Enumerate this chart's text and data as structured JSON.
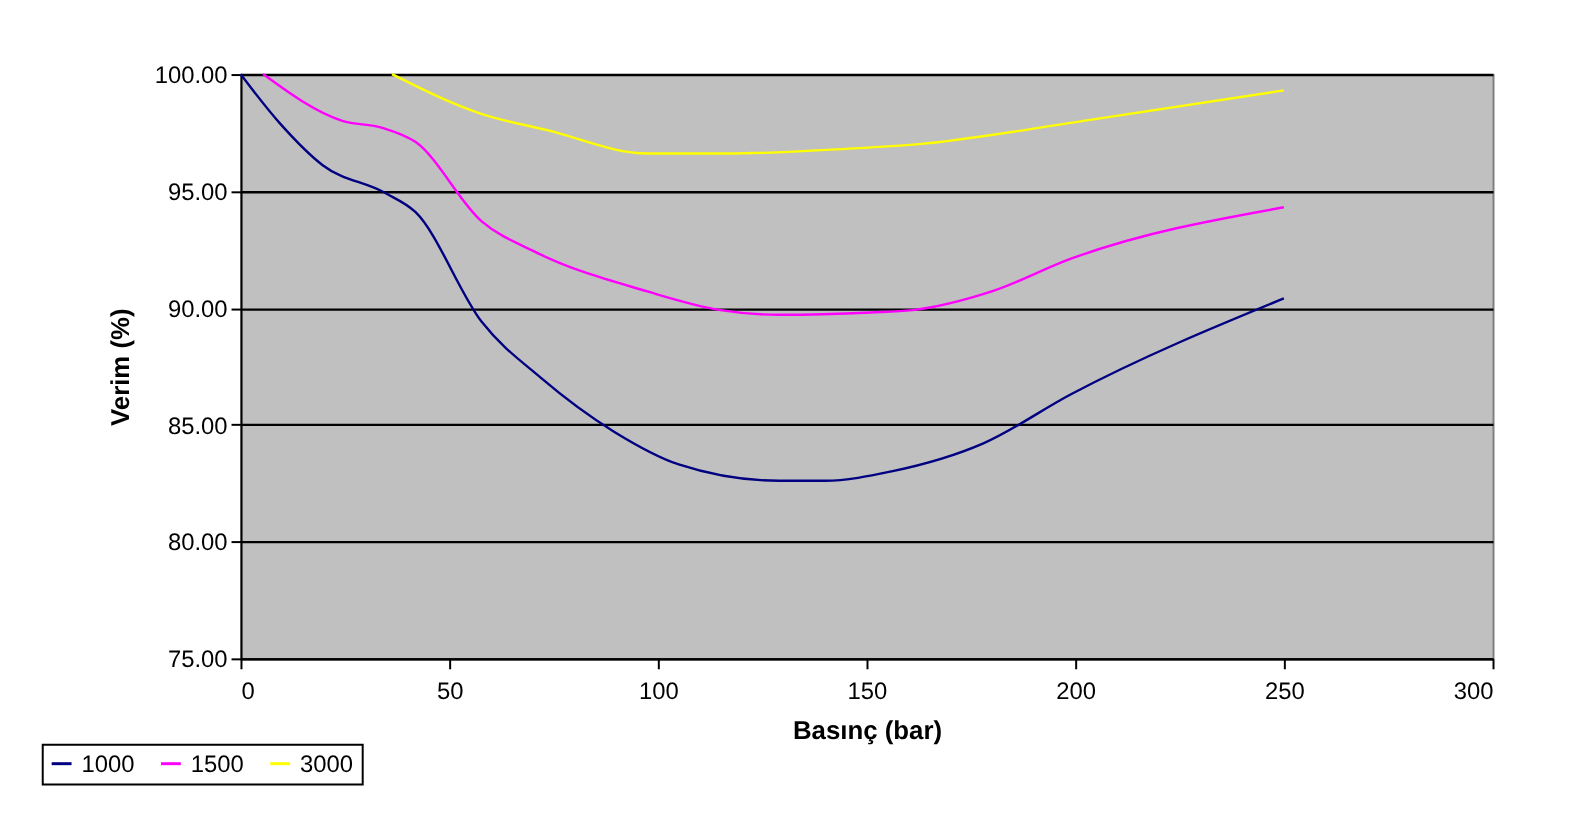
{
  "chart_data": {
    "type": "line",
    "xlabel": "Basınç (bar)",
    "ylabel": "Verim (%)",
    "xlim": [
      0,
      300
    ],
    "xticks": [
      0,
      50,
      100,
      150,
      200,
      250,
      300
    ],
    "ylim": [
      75,
      100
    ],
    "yticks": [
      {
        "value": 75,
        "label": "75.00"
      },
      {
        "value": 80,
        "label": "80.00"
      },
      {
        "value": 85,
        "label": "85.00"
      },
      {
        "value": 90,
        "label": "90.00"
      },
      {
        "value": 95,
        "label": "95.00"
      },
      {
        "value": 100,
        "label": "100.00"
      }
    ],
    "grid": "y",
    "legend": "bottom left",
    "marker": "none",
    "line_style": "solid",
    "series": [
      {
        "name": "1000",
        "color": "#000080",
        "x": [
          0,
          9.4,
          19.7,
          34.8,
          41.9,
          57.8,
          72,
          89.5,
          105,
          129,
          140,
          156,
          178,
          199,
          250
        ],
        "values": [
          100,
          97.9,
          96.1,
          94.9,
          94.1,
          89.4,
          87.0,
          84.7,
          83.3,
          82.6,
          82.6,
          83.0,
          84.2,
          86.3,
          90.4
        ]
      },
      {
        "name": "1500",
        "color": "#ff00ff",
        "x": [
          5.4,
          24.4,
          34,
          41.9,
          57.8,
          70.5,
          97.5,
          115,
          129,
          151,
          161,
          180,
          199,
          250
        ],
        "values": [
          100,
          98.0,
          97.7,
          97.1,
          93.7,
          92.4,
          90.7,
          89.9,
          89.7,
          89.8,
          89.9,
          90.7,
          92.1,
          94.3
        ]
      },
      {
        "name": "3000",
        "color": "#ffff00",
        "x": [
          36.3,
          57.7,
          73.5,
          97.5,
          116.5,
          145,
          162.5,
          202,
          250
        ],
        "values": [
          100,
          98.3,
          97.6,
          96.6,
          96.6,
          96.8,
          97.0,
          98.0,
          99.3
        ]
      }
    ]
  }
}
